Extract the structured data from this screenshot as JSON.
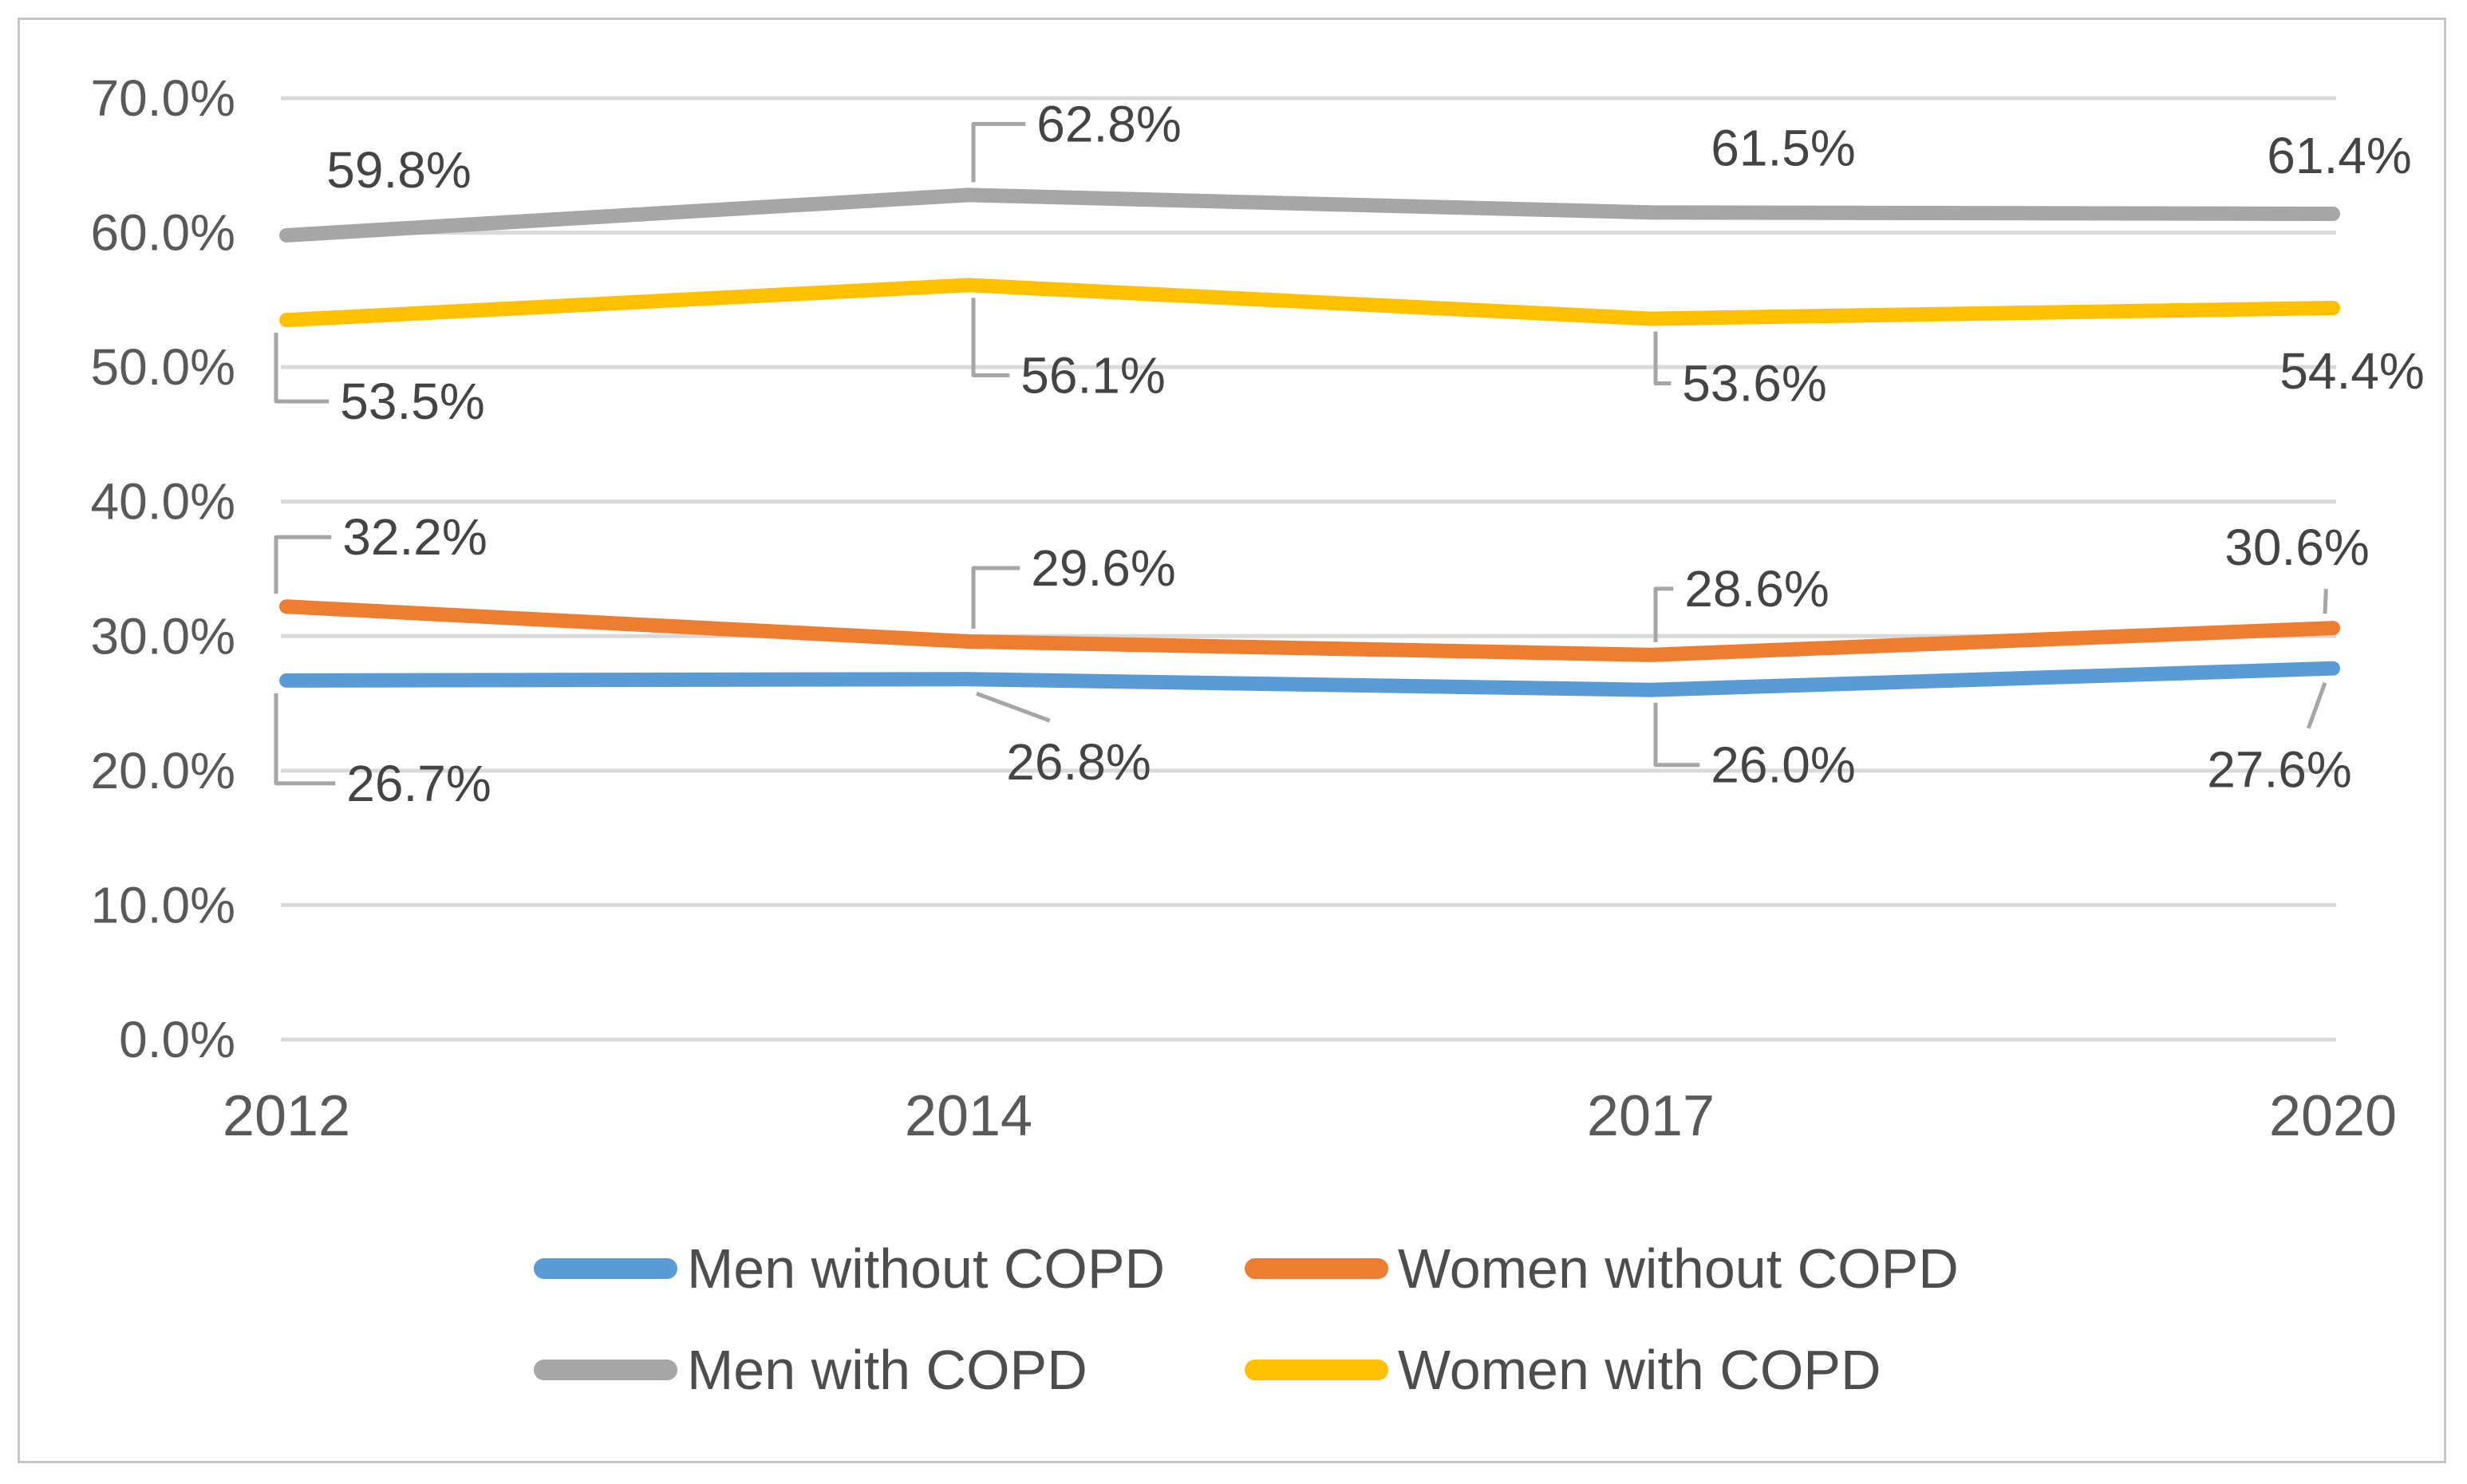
{
  "chart_data": {
    "type": "line",
    "title": "",
    "categories": [
      "2012",
      "2014",
      "2017",
      "2020"
    ],
    "y_axis": {
      "min": 0,
      "max": 70,
      "step": 10,
      "tick_labels": [
        "0.0%",
        "10.0%",
        "20.0%",
        "30.0%",
        "40.0%",
        "50.0%",
        "60.0%",
        "70.0%"
      ]
    },
    "grid": true,
    "legend_position": "bottom",
    "series": [
      {
        "name": "Men without COPD",
        "color": "#5B9BD5",
        "values": [
          26.7,
          26.8,
          26.0,
          27.6
        ],
        "data_labels": [
          {
            "text": "26.7%",
            "dx": 166,
            "dy": 129,
            "leader": "elbow"
          },
          {
            "text": "26.8%",
            "dx": 138,
            "dy": 104,
            "leader": "diag"
          },
          {
            "text": "26.0%",
            "dx": 166,
            "dy": 94,
            "leader": "elbow"
          },
          {
            "text": "27.6%",
            "dx": -67,
            "dy": 127,
            "leader": "diag"
          }
        ]
      },
      {
        "name": "Women without COPD",
        "color": "#ED7D31",
        "values": [
          32.2,
          29.6,
          28.6,
          30.6
        ],
        "data_labels": [
          {
            "text": "32.2%",
            "dx": 161,
            "dy": -87,
            "leader": "elbow"
          },
          {
            "text": "29.6%",
            "dx": 169,
            "dy": -92,
            "leader": "elbow"
          },
          {
            "text": "28.6%",
            "dx": 133,
            "dy": -83,
            "leader": "elbow"
          },
          {
            "text": "30.6%",
            "dx": -45,
            "dy": -101,
            "leader": "diag"
          }
        ]
      },
      {
        "name": "Men with COPD",
        "color": "#A6A6A6",
        "values": [
          59.8,
          62.8,
          61.5,
          61.4
        ],
        "data_labels": [
          {
            "text": "59.8%",
            "dx": 141,
            "dy": -82,
            "leader": "none"
          },
          {
            "text": "62.8%",
            "dx": 176,
            "dy": -89,
            "leader": "elbow"
          },
          {
            "text": "61.5%",
            "dx": 166,
            "dy": -81,
            "leader": "none"
          },
          {
            "text": "61.4%",
            "dx": 8,
            "dy": -73,
            "leader": "none"
          }
        ]
      },
      {
        "name": "Women with COPD",
        "color": "#FFC000",
        "values": [
          53.5,
          56.1,
          53.6,
          54.4
        ],
        "data_labels": [
          {
            "text": "53.5%",
            "dx": 158,
            "dy": 102,
            "leader": "elbow"
          },
          {
            "text": "56.1%",
            "dx": 156,
            "dy": 113,
            "leader": "elbow"
          },
          {
            "text": "53.6%",
            "dx": 130,
            "dy": 81,
            "leader": "elbow"
          },
          {
            "text": "54.4%",
            "dx": 24,
            "dy": 79,
            "leader": "none"
          }
        ]
      }
    ],
    "legend": {
      "items": [
        {
          "label": "Men without COPD",
          "color": "#5B9BD5"
        },
        {
          "label": "Women without COPD",
          "color": "#ED7D31"
        },
        {
          "label": "Men with COPD",
          "color": "#A6A6A6"
        },
        {
          "label": "Women with COPD",
          "color": "#FFC000"
        }
      ]
    }
  },
  "colors": {
    "gridline": "#D9D9D9",
    "axis_text": "#595959",
    "data_label_text": "#444444",
    "leader": "#A6A6A6",
    "border": "#C6C6C6",
    "background": "#FFFFFF"
  }
}
